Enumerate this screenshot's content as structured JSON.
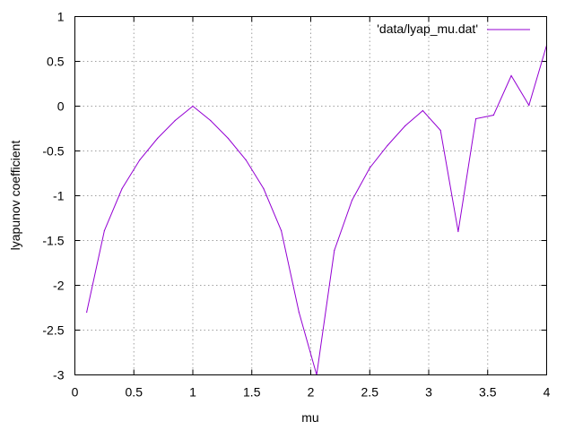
{
  "chart_data": {
    "type": "line",
    "xlabel": "mu",
    "ylabel": "lyapunov coefficient",
    "xlim": [
      0,
      4
    ],
    "ylim": [
      -3,
      1
    ],
    "xticks": [
      0,
      0.5,
      1,
      1.5,
      2,
      2.5,
      3,
      3.5,
      4
    ],
    "xtick_labels": [
      "0",
      "0.5",
      "1",
      "1.5",
      "2",
      "2.5",
      "3",
      "3.5",
      "4"
    ],
    "yticks": [
      -3,
      -2.5,
      -2,
      -1.5,
      -1,
      -0.5,
      0,
      0.5,
      1
    ],
    "ytick_labels": [
      "-3",
      "-2.5",
      "-2",
      "-1.5",
      "-1",
      "-0.5",
      "0",
      "0.5",
      "1"
    ],
    "grid": true,
    "legend_position": "top-right",
    "series": [
      {
        "name": "'data/lyap_mu.dat'",
        "color": "#9400d3",
        "x": [
          0.1,
          0.25,
          0.4,
          0.55,
          0.7,
          0.85,
          1.0,
          1.15,
          1.3,
          1.45,
          1.6,
          1.75,
          1.9,
          2.05,
          2.2,
          2.35,
          2.5,
          2.65,
          2.8,
          2.95,
          3.1,
          3.25,
          3.4,
          3.55,
          3.7,
          3.85,
          4.0
        ],
        "y": [
          -2.3,
          -1.39,
          -0.92,
          -0.6,
          -0.36,
          -0.16,
          0.0,
          -0.16,
          -0.36,
          -0.6,
          -0.92,
          -1.39,
          -2.3,
          -3.0,
          -1.61,
          -1.05,
          -0.69,
          -0.44,
          -0.22,
          -0.05,
          -0.27,
          -1.4,
          -0.14,
          -0.1,
          0.34,
          0.01,
          0.68
        ]
      }
    ]
  }
}
